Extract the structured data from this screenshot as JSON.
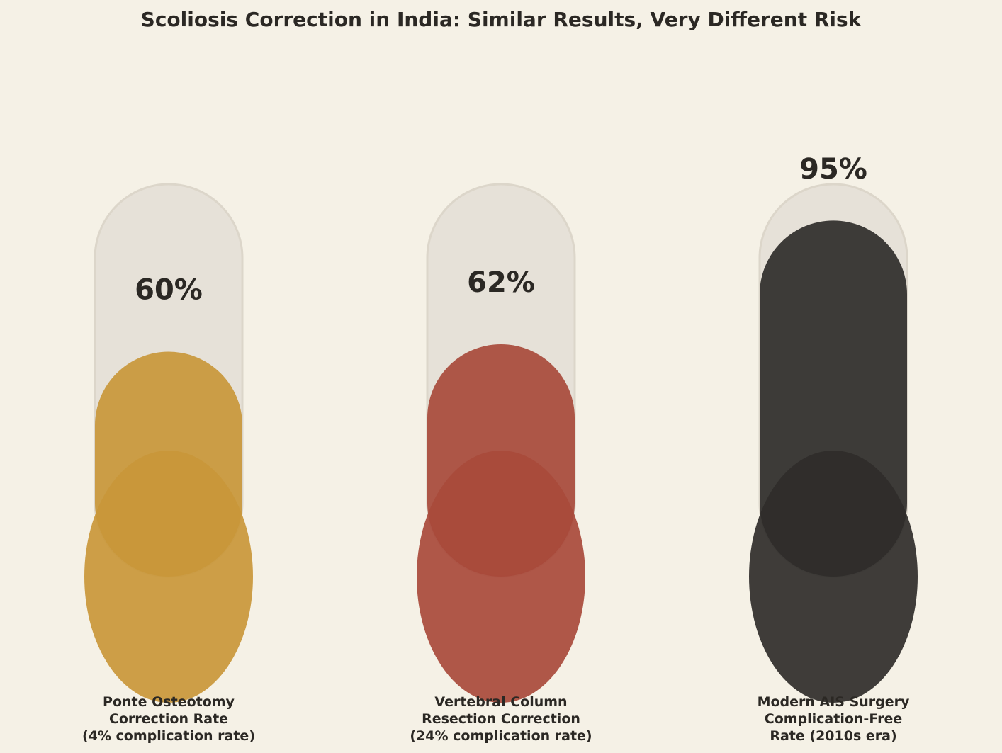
{
  "chart_data": {
    "type": "bar",
    "title": "Scoliosis Correction in India: Similar Results, Very Different Risk",
    "xlabel": "",
    "ylabel": "",
    "ylim": [
      0,
      100
    ],
    "grid": false,
    "categories": [
      [
        "Ponte Osteotomy",
        "Correction Rate",
        "(4% complication rate)"
      ],
      [
        "Vertebral Column",
        "Resection Correction",
        "(24% complication rate)"
      ],
      [
        "Modern AIS Surgery",
        "Complication-Free",
        "Rate (2010s era)"
      ]
    ],
    "values": [
      60,
      62,
      95
    ],
    "value_labels": [
      "60%",
      "62%",
      "95%"
    ],
    "colors": [
      "#c9973a",
      "#a84a3b",
      "#2f2d2a"
    ],
    "track_color": "#e6e1d8"
  }
}
